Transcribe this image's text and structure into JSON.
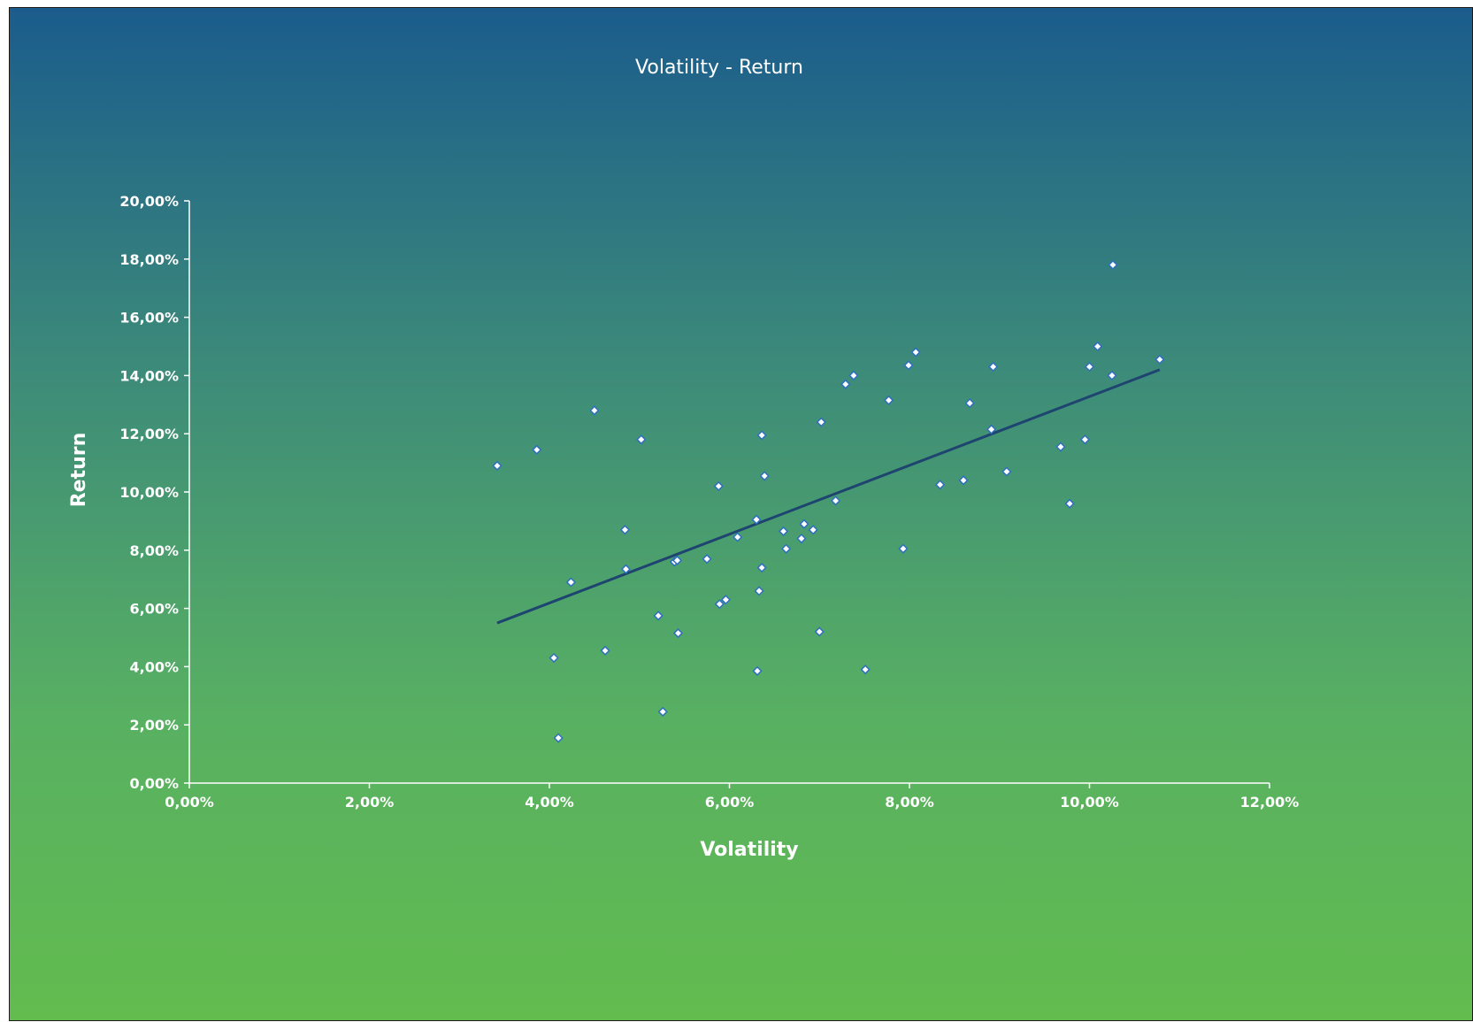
{
  "chart_data": {
    "type": "scatter",
    "title": "Volatility - Return",
    "xlabel": "Volatility",
    "ylabel": "Return",
    "xlim": [
      0,
      12
    ],
    "ylim": [
      0,
      20
    ],
    "x_ticks": [
      "0,00%",
      "2,00%",
      "4,00%",
      "6,00%",
      "8,00%",
      "10,00%",
      "12,00%"
    ],
    "y_ticks": [
      "0,00%",
      "2,00%",
      "4,00%",
      "6,00%",
      "8,00%",
      "10,00%",
      "12,00%",
      "14,00%",
      "16,00%",
      "18,00%",
      "20,00%"
    ],
    "grid": false,
    "legend": "none",
    "series": [
      {
        "points": [
          [
            3.42,
            10.9
          ],
          [
            3.86,
            11.45
          ],
          [
            4.05,
            4.3
          ],
          [
            4.1,
            1.55
          ],
          [
            4.24,
            6.9
          ],
          [
            4.5,
            12.8
          ],
          [
            4.62,
            4.55
          ],
          [
            4.84,
            8.7
          ],
          [
            4.85,
            7.35
          ],
          [
            5.02,
            11.8
          ],
          [
            5.21,
            5.75
          ],
          [
            5.26,
            2.45
          ],
          [
            5.39,
            7.6
          ],
          [
            5.42,
            7.65
          ],
          [
            5.43,
            5.15
          ],
          [
            5.75,
            7.7
          ],
          [
            5.88,
            10.2
          ],
          [
            5.89,
            6.15
          ],
          [
            5.96,
            6.3
          ],
          [
            6.09,
            8.45
          ],
          [
            6.3,
            9.05
          ],
          [
            6.31,
            3.85
          ],
          [
            6.33,
            6.6
          ],
          [
            6.36,
            7.4
          ],
          [
            6.36,
            11.95
          ],
          [
            6.39,
            10.55
          ],
          [
            6.6,
            8.65
          ],
          [
            6.63,
            8.05
          ],
          [
            6.8,
            8.4
          ],
          [
            6.83,
            8.9
          ],
          [
            6.93,
            8.7
          ],
          [
            7.0,
            5.2
          ],
          [
            7.02,
            12.4
          ],
          [
            7.18,
            9.7
          ],
          [
            7.29,
            13.7
          ],
          [
            7.38,
            14.0
          ],
          [
            7.51,
            3.9
          ],
          [
            7.77,
            13.15
          ],
          [
            7.93,
            8.05
          ],
          [
            7.99,
            14.35
          ],
          [
            8.07,
            14.8
          ],
          [
            8.34,
            10.25
          ],
          [
            8.6,
            10.4
          ],
          [
            8.67,
            13.05
          ],
          [
            8.91,
            12.15
          ],
          [
            8.93,
            14.3
          ],
          [
            9.08,
            10.7
          ],
          [
            9.68,
            11.55
          ],
          [
            9.78,
            9.6
          ],
          [
            9.95,
            11.8
          ],
          [
            10.0,
            14.3
          ],
          [
            10.09,
            15.0
          ],
          [
            10.25,
            14.0
          ],
          [
            10.26,
            17.8
          ],
          [
            10.78,
            14.55
          ]
        ],
        "marker_color": "#2d6fc0"
      }
    ],
    "trendline": {
      "type": "linear",
      "x": [
        3.42,
        10.78
      ],
      "y": [
        5.5,
        14.2
      ],
      "color": "#1e4470"
    }
  }
}
